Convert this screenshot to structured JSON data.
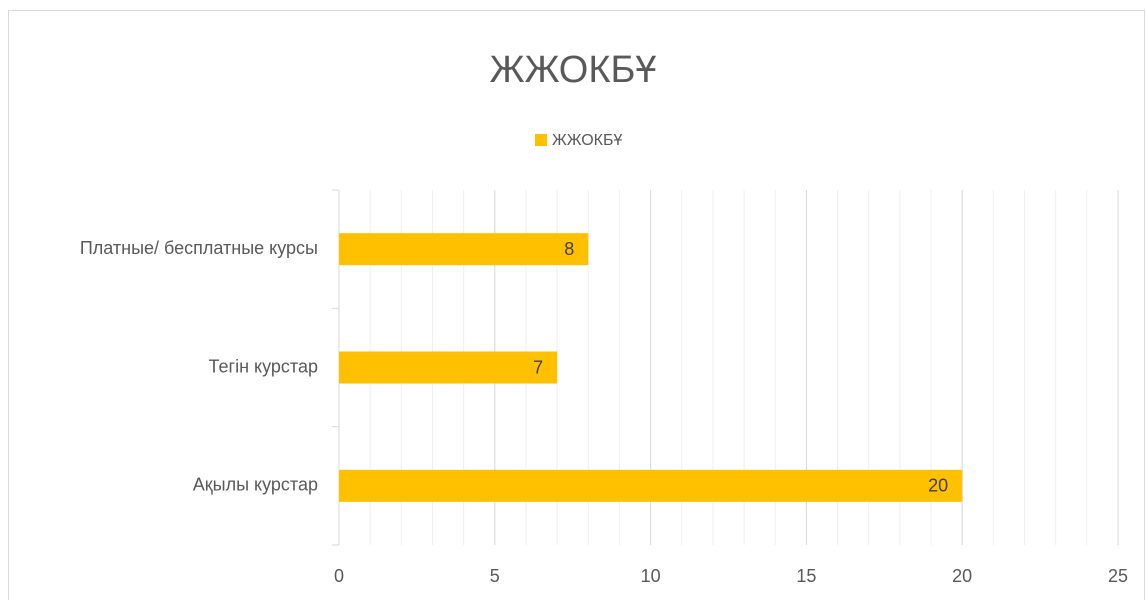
{
  "chart_data": {
    "type": "barh",
    "title": "ЖЖОКБҰ",
    "categories": [
      "Платные/ бесплатные курсы",
      "Тегін курстар",
      "Ақылы курстар"
    ],
    "series": [
      {
        "name": "ЖЖОКБҰ",
        "color": "#ffc000",
        "values": [
          8,
          7,
          20
        ]
      }
    ],
    "xlim": [
      0,
      25
    ],
    "xticks": [
      0,
      5,
      10,
      15,
      20,
      25
    ],
    "grid": true,
    "minor_grid": true,
    "legend": "top",
    "data_labels": true
  }
}
